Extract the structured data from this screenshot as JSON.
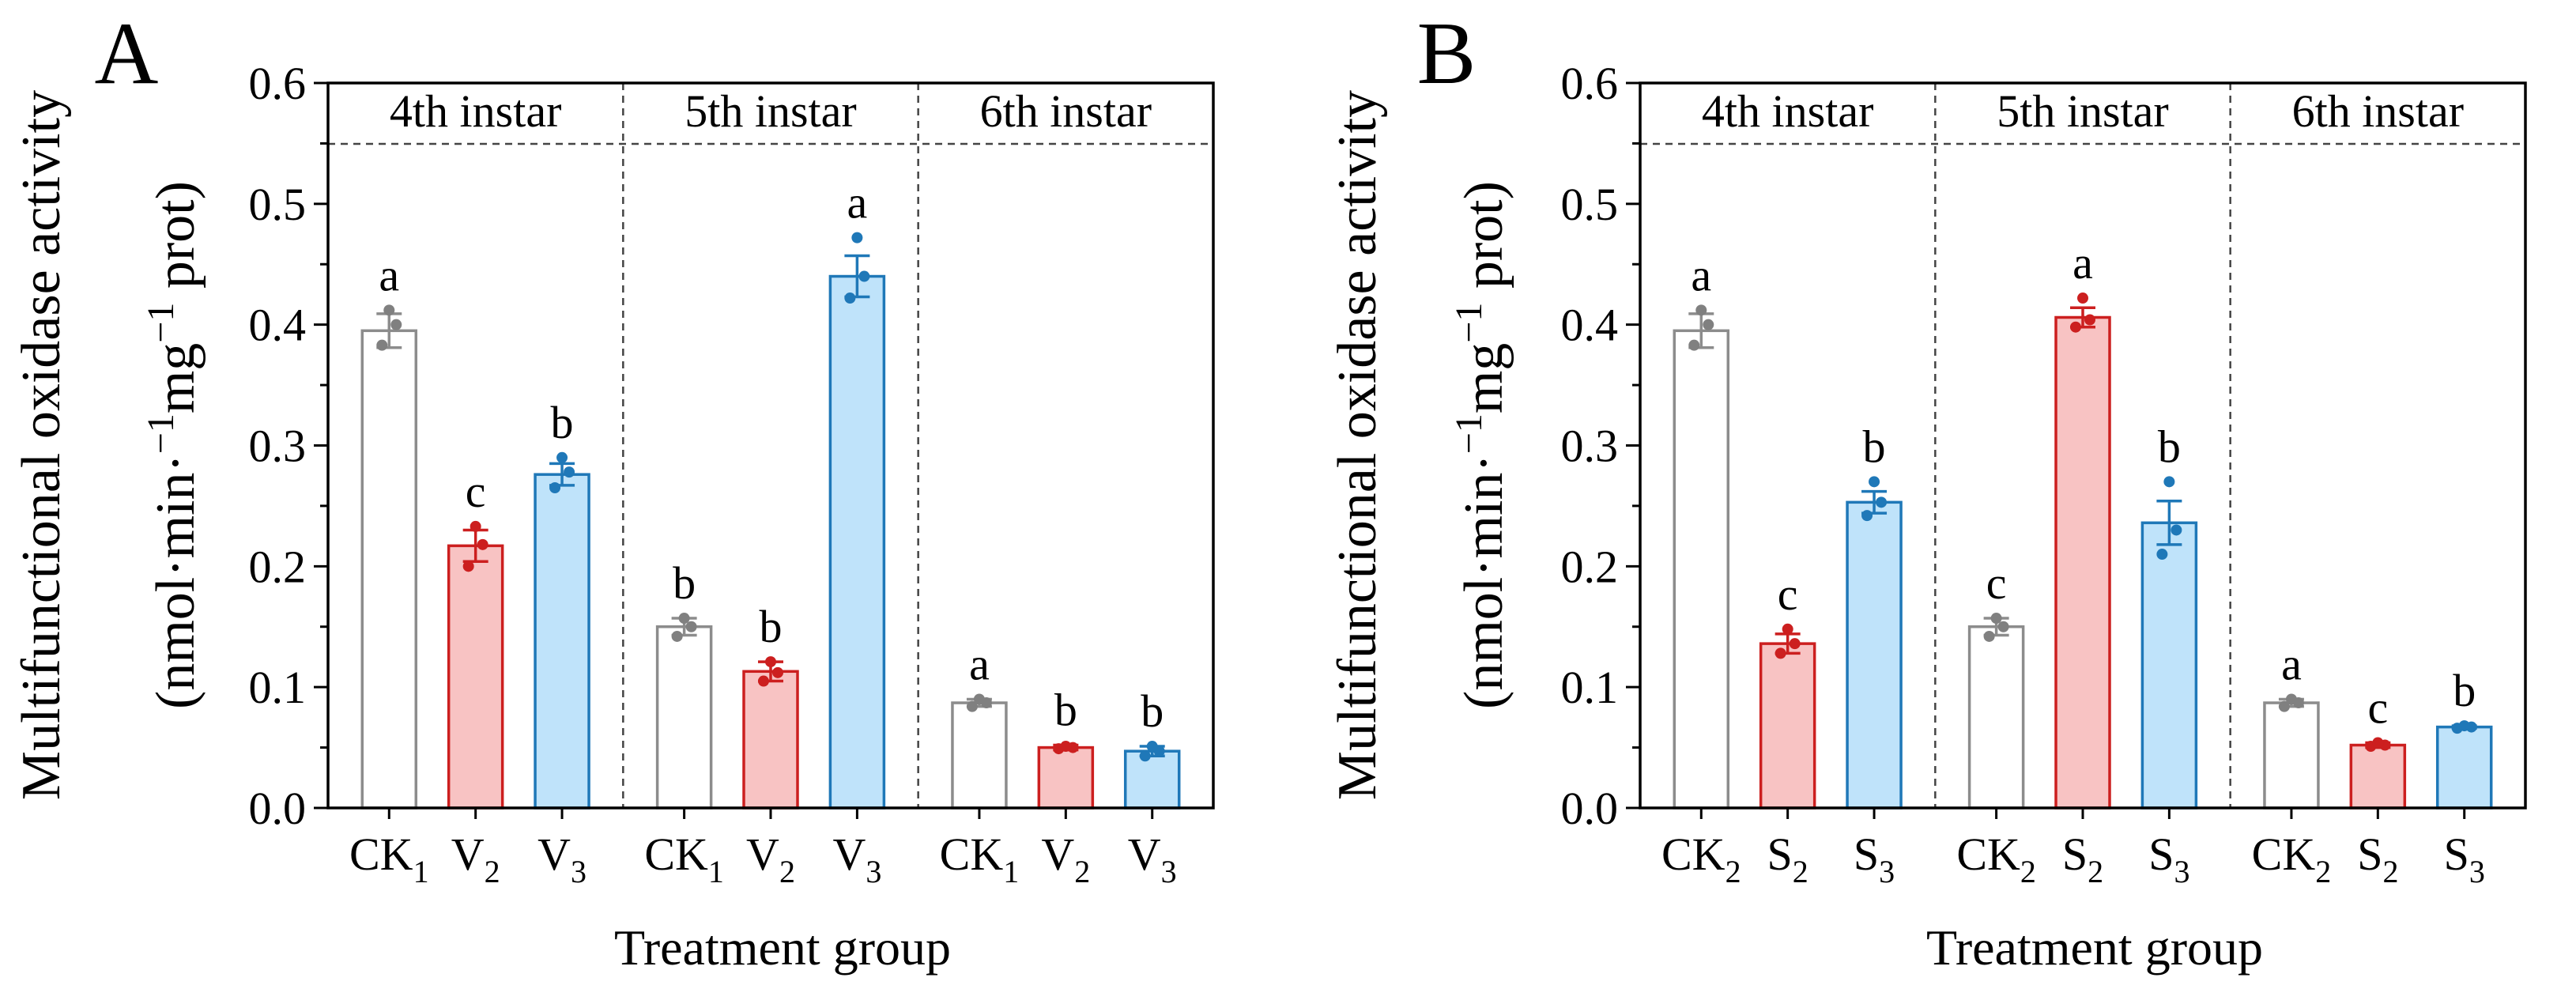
{
  "chart_data": [
    {
      "panel_label": "A",
      "type": "bar",
      "ylabel": "Multifunctional oxidase activity",
      "ylabel_unit": {
        "open": "(",
        "a": "nmol·min·",
        "sup1": "−1",
        "b": "mg",
        "sup2": "−1",
        "c": " prot",
        "close": ")"
      },
      "xlabel": "Treatment group",
      "ylim": [
        0.0,
        0.6
      ],
      "yticks": [
        "0.0",
        "0.1",
        "0.2",
        "0.3",
        "0.4",
        "0.5",
        "0.6"
      ],
      "stages": [
        {
          "name": "4th instar",
          "bars": [
            {
              "base": "CK",
              "sub": "1",
              "value": 0.395,
              "err": 0.014,
              "letter": "a",
              "color": "gray",
              "points": [
                0.383,
                0.4,
                0.412
              ]
            },
            {
              "base": "V",
              "sub": "2",
              "value": 0.217,
              "err": 0.013,
              "letter": "c",
              "color": "red",
              "points": [
                0.2,
                0.218,
                0.233
              ]
            },
            {
              "base": "V",
              "sub": "3",
              "value": 0.276,
              "err": 0.009,
              "letter": "b",
              "color": "blue",
              "points": [
                0.265,
                0.278,
                0.29
              ]
            }
          ]
        },
        {
          "name": "5th instar",
          "bars": [
            {
              "base": "CK",
              "sub": "1",
              "value": 0.15,
              "err": 0.007,
              "letter": "b",
              "color": "gray",
              "points": [
                0.142,
                0.15,
                0.157
              ]
            },
            {
              "base": "V",
              "sub": "2",
              "value": 0.113,
              "err": 0.008,
              "letter": "b",
              "color": "red",
              "points": [
                0.105,
                0.112,
                0.121
              ]
            },
            {
              "base": "V",
              "sub": "3",
              "value": 0.44,
              "err": 0.017,
              "letter": "a",
              "color": "blue",
              "points": [
                0.422,
                0.44,
                0.472
              ]
            }
          ]
        },
        {
          "name": "6th instar",
          "bars": [
            {
              "base": "CK",
              "sub": "1",
              "value": 0.087,
              "err": 0.003,
              "letter": "a",
              "color": "gray",
              "points": [
                0.084,
                0.087,
                0.09
              ]
            },
            {
              "base": "V",
              "sub": "2",
              "value": 0.05,
              "err": 0.002,
              "letter": "b",
              "color": "red",
              "points": [
                0.049,
                0.05,
                0.051
              ]
            },
            {
              "base": "V",
              "sub": "3",
              "value": 0.047,
              "err": 0.004,
              "letter": "b",
              "color": "blue",
              "points": [
                0.043,
                0.047,
                0.051
              ]
            }
          ]
        }
      ]
    },
    {
      "panel_label": "B",
      "type": "bar",
      "ylabel": "Multifunctional oxidase activity",
      "ylabel_unit": {
        "open": "(",
        "a": "nmol·min·",
        "sup1": "−1",
        "b": "mg",
        "sup2": "−1",
        "c": " prot",
        "close": ")"
      },
      "xlabel": "Treatment group",
      "ylim": [
        0.0,
        0.6
      ],
      "yticks": [
        "0.0",
        "0.1",
        "0.2",
        "0.3",
        "0.4",
        "0.5",
        "0.6"
      ],
      "stages": [
        {
          "name": "4th instar",
          "bars": [
            {
              "base": "CK",
              "sub": "2",
              "value": 0.395,
              "err": 0.014,
              "letter": "a",
              "color": "gray",
              "points": [
                0.383,
                0.4,
                0.412
              ]
            },
            {
              "base": "S",
              "sub": "2",
              "value": 0.136,
              "err": 0.008,
              "letter": "c",
              "color": "red",
              "points": [
                0.128,
                0.136,
                0.148
              ]
            },
            {
              "base": "S",
              "sub": "3",
              "value": 0.253,
              "err": 0.009,
              "letter": "b",
              "color": "blue",
              "points": [
                0.242,
                0.253,
                0.27
              ]
            }
          ]
        },
        {
          "name": "5th instar",
          "bars": [
            {
              "base": "CK",
              "sub": "2",
              "value": 0.15,
              "err": 0.007,
              "letter": "c",
              "color": "gray",
              "points": [
                0.142,
                0.15,
                0.157
              ]
            },
            {
              "base": "S",
              "sub": "2",
              "value": 0.406,
              "err": 0.008,
              "letter": "a",
              "color": "red",
              "points": [
                0.398,
                0.404,
                0.422
              ]
            },
            {
              "base": "S",
              "sub": "3",
              "value": 0.236,
              "err": 0.018,
              "letter": "b",
              "color": "blue",
              "points": [
                0.21,
                0.23,
                0.27
              ]
            }
          ]
        },
        {
          "name": "6th instar",
          "bars": [
            {
              "base": "CK",
              "sub": "2",
              "value": 0.087,
              "err": 0.003,
              "letter": "a",
              "color": "gray",
              "points": [
                0.084,
                0.087,
                0.09
              ]
            },
            {
              "base": "S",
              "sub": "2",
              "value": 0.052,
              "err": 0.002,
              "letter": "c",
              "color": "red",
              "points": [
                0.051,
                0.052,
                0.054
              ]
            },
            {
              "base": "S",
              "sub": "3",
              "value": 0.067,
              "err": 0.001,
              "letter": "b",
              "color": "blue",
              "points": [
                0.066,
                0.067,
                0.068
              ]
            }
          ]
        }
      ]
    }
  ],
  "palette": {
    "gray": {
      "fill": "#ffffff",
      "stroke": "#8c8c8c",
      "dot": "#808080"
    },
    "red": {
      "fill": "#f8c3c3",
      "stroke": "#cc1f1f",
      "dot": "#cc1f1f"
    },
    "blue": {
      "fill": "#bfe3fa",
      "stroke": "#1f78b8",
      "dot": "#1f78b8"
    }
  }
}
